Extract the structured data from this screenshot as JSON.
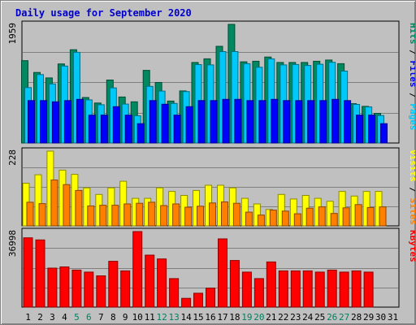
{
  "title": "Daily usage for September 2020",
  "chart_data": {
    "title": "Daily usage for September 2020",
    "days": [
      "1",
      "2",
      "3",
      "4",
      "5",
      "6",
      "7",
      "8",
      "9",
      "10",
      "11",
      "12",
      "13",
      "14",
      "15",
      "16",
      "17",
      "18",
      "19",
      "20",
      "21",
      "22",
      "23",
      "24",
      "25",
      "26",
      "27",
      "28",
      "29",
      "30",
      "31"
    ],
    "weekend_days": [
      "5",
      "6",
      "12",
      "13",
      "19",
      "20",
      "26",
      "27"
    ],
    "charts": [
      {
        "type": "bar",
        "max_label": "1959",
        "ymax": 1959,
        "axis_label": [
          "Pages",
          "Files",
          "Hits"
        ],
        "axis_label_colors": [
          "#00c8f8",
          "#0000ff",
          "#008860"
        ],
        "series": [
          {
            "name": "Hits",
            "color": "#008860",
            "values": [
              1359,
              1165,
              1075,
              1305,
              1541,
              751,
              660,
              1040,
              760,
              680,
              1200,
              1000,
              693,
              860,
              1330,
              1390,
              1597,
              1959,
              1340,
              1350,
              1420,
              1330,
              1330,
              1330,
              1350,
              1370,
              1310,
              650,
              605,
              490,
              0
            ]
          },
          {
            "name": "Files",
            "color": "#00c8f8",
            "values": [
              915,
              1130,
              975,
              1271,
              1498,
              712,
              632,
              910,
              643,
              450,
              935,
              858,
              654,
              850,
              1295,
              1290,
              1509,
              1509,
              1310,
              1250,
              1389,
              1290,
              1296,
              1280,
              1300,
              1332,
              1188,
              638,
              596,
              454,
              0
            ]
          },
          {
            "name": "Pages",
            "color": "#0000ff",
            "values": [
              700,
              700,
              680,
              700,
              720,
              460,
              460,
              600,
              460,
              320,
              700,
              640,
              460,
              600,
              700,
              700,
              720,
              720,
              700,
              700,
              720,
              700,
              700,
              700,
              700,
              720,
              700,
              460,
              460,
              320,
              0
            ]
          }
        ]
      },
      {
        "type": "bar",
        "max_label": "228",
        "ymax": 228,
        "axis_label": [
          "Sites",
          "Visits"
        ],
        "axis_label_colors": [
          "#ff8000",
          "#ffff00"
        ],
        "series": [
          {
            "name": "Visits",
            "color": "#ffff00",
            "values": [
              130,
              156,
              228,
              170,
              157,
              116,
              96,
              116,
              136,
              84,
              84,
              116,
              105,
              93,
              108,
              124,
              124,
              116,
              84,
              67,
              50,
              96,
              82,
              93,
              84,
              75,
              105,
              91,
              105,
              105,
              0
            ]
          },
          {
            "name": "Sites",
            "color": "#ff8000",
            "values": [
              72,
              68,
              140,
              126,
              108,
              61,
              63,
              63,
              67,
              69,
              72,
              62,
              67,
              57,
              60,
              70,
              73,
              69,
              42,
              33,
              48,
              45,
              37,
              54,
              58,
              38,
              55,
              65,
              56,
              58,
              0
            ]
          }
        ]
      },
      {
        "type": "bar",
        "max_label": "36998",
        "ymax": 36998,
        "axis_label": [
          "KBytes"
        ],
        "axis_label_colors": [
          "#ff0000"
        ],
        "series": [
          {
            "name": "KBytes",
            "color": "#ff0000",
            "values": [
              33950,
              32900,
              19100,
              19700,
              18160,
              17150,
              15300,
              22450,
              17740,
              36998,
              25460,
              23580,
              13950,
              4300,
              6800,
              9300,
              33400,
              22850,
              17150,
              13950,
              22100,
              17740,
              17740,
              17740,
              17150,
              18160,
              17150,
              17750,
              17150,
              0,
              0
            ]
          }
        ]
      }
    ]
  }
}
